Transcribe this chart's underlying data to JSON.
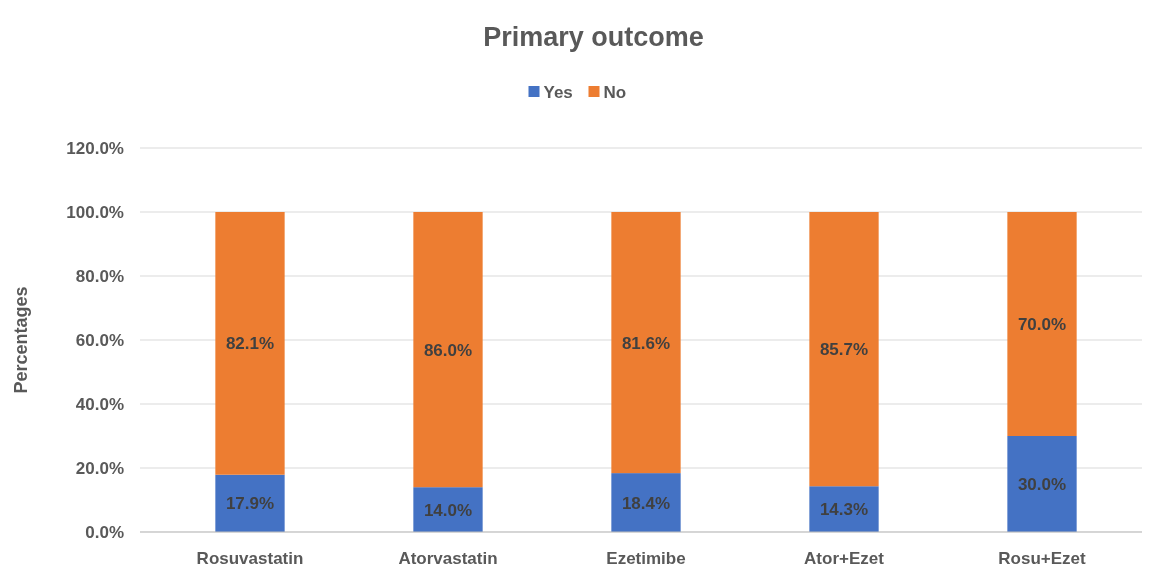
{
  "chart_data": {
    "type": "bar",
    "title": "Primary outcome",
    "ylabel": "Percentages",
    "stacked": true,
    "legend": "top",
    "grid": "y",
    "categories": [
      "Rosuvastatin",
      "Atorvastatin",
      "Ezetimibe",
      "Ator+Ezet",
      "Rosu+Ezet"
    ],
    "series": [
      {
        "name": "Yes",
        "color": "#4472c4",
        "values": [
          17.9,
          14.0,
          18.4,
          14.3,
          30.0
        ],
        "value_labels": [
          "17.9%",
          "14.0%",
          "18.4%",
          "14.3%",
          "30.0%"
        ]
      },
      {
        "name": "No",
        "color": "#ed7d31",
        "values": [
          82.1,
          86.0,
          81.6,
          85.7,
          70.0
        ],
        "value_labels": [
          "82.1%",
          "86.0%",
          "81.6%",
          "85.7%",
          "70.0%"
        ]
      }
    ],
    "ylim": [
      0,
      120
    ],
    "yticks": [
      {
        "value": 0,
        "label": "0.0%"
      },
      {
        "value": 20,
        "label": "20.0%"
      },
      {
        "value": 40,
        "label": "40.0%"
      },
      {
        "value": 60,
        "label": "60.0%"
      },
      {
        "value": 80,
        "label": "80.0%"
      },
      {
        "value": 100,
        "label": "100.0%"
      },
      {
        "value": 120,
        "label": "120.0%"
      }
    ]
  }
}
